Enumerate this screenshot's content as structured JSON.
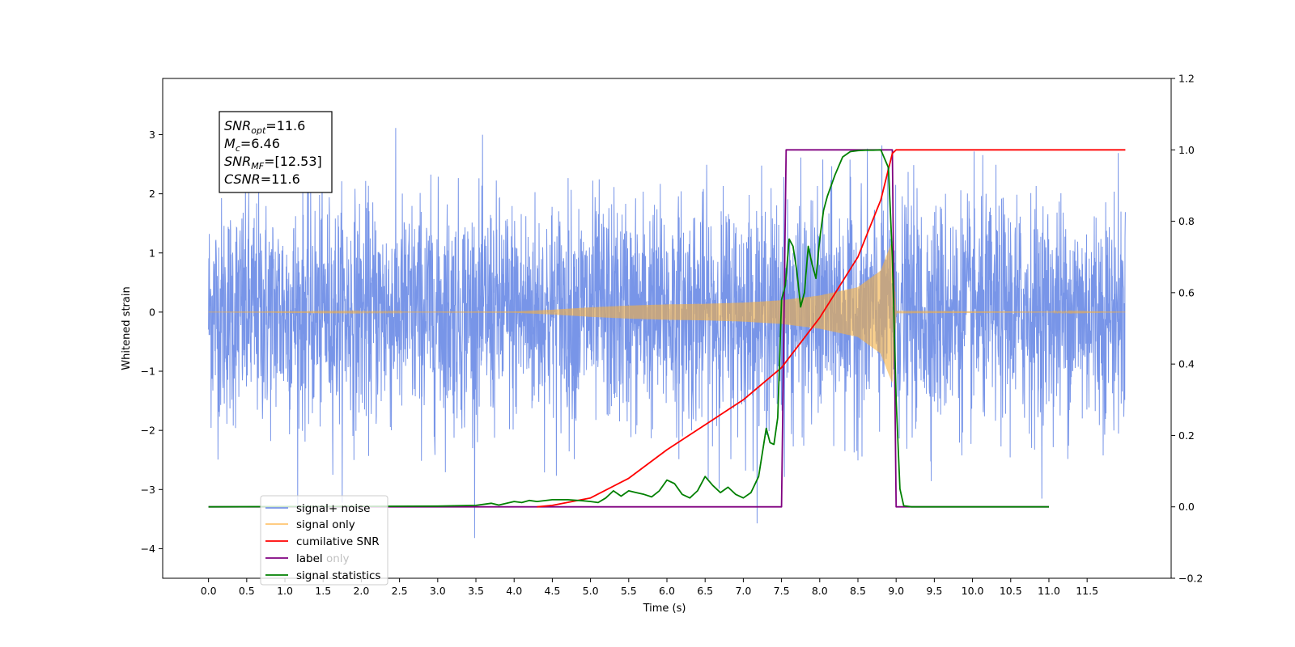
{
  "chart_data": {
    "type": "line",
    "title": "",
    "xlabel": "Time (s)",
    "ylabel": "Whitened strain",
    "y2label": "",
    "xlim": [
      -0.6,
      12.6
    ],
    "ylim": [
      -4.5,
      3.95
    ],
    "y2lim": [
      -0.2,
      1.2
    ],
    "x_ticks": [
      "0.0",
      "0.5",
      "1.0",
      "1.5",
      "2.0",
      "2.5",
      "3.0",
      "3.5",
      "4.0",
      "4.5",
      "5.0",
      "5.5",
      "6.0",
      "6.5",
      "7.0",
      "7.5",
      "8.0",
      "8.5",
      "9.0",
      "9.5",
      "10.0",
      "10.5",
      "11.0",
      "11.5"
    ],
    "y_ticks": [
      "3",
      "2",
      "1",
      "0",
      "−1",
      "−2",
      "−3",
      "−4"
    ],
    "y2_ticks": [
      "1.2",
      "1.0",
      "0.8",
      "0.6",
      "0.4",
      "0.2",
      "0.0",
      "−0.2"
    ],
    "grid": false,
    "legend_position": "lower-left",
    "annotation": {
      "lines": [
        {
          "sym": "SNR",
          "sub": "opt",
          "value": "=11.6"
        },
        {
          "sym": "M",
          "sub": "c",
          "value": "=6.46"
        },
        {
          "sym": "SNR",
          "sub": "MF",
          "value": "=[12.53]"
        },
        {
          "sym": "CSNR",
          "sub": "",
          "value": "=11.6"
        }
      ]
    },
    "series": [
      {
        "name": "signal+ noise",
        "axis": "left",
        "color": "#7895e8",
        "description_values": {
          "x_start": 0.0,
          "x_end": 12.0,
          "typical_amplitude": 1.3,
          "peak_max": 3.55,
          "peak_min": -4.1
        }
      },
      {
        "name": "signal only",
        "axis": "left",
        "color": "#f5b041",
        "x": [
          0,
          4.0,
          4.5,
          5.0,
          5.5,
          6.0,
          6.5,
          7.0,
          7.5,
          8.0,
          8.5,
          8.8,
          8.95,
          9.0,
          12.0
        ],
        "envelope": [
          0.0,
          0.01,
          0.04,
          0.08,
          0.11,
          0.13,
          0.14,
          0.16,
          0.2,
          0.28,
          0.42,
          0.7,
          1.2,
          0.02,
          0.0
        ]
      },
      {
        "name": "cumilative SNR",
        "axis": "right",
        "color": "#ff0000",
        "x": [
          4.3,
          4.5,
          5.0,
          5.5,
          6.0,
          6.5,
          7.0,
          7.5,
          8.0,
          8.5,
          8.8,
          8.95,
          9.0,
          12.0
        ],
        "y": [
          0.0,
          0.004,
          0.025,
          0.08,
          0.16,
          0.23,
          0.3,
          0.39,
          0.53,
          0.7,
          0.86,
          0.99,
          1.0,
          1.0
        ]
      },
      {
        "name": "label",
        "axis": "right",
        "color": "#800080",
        "x": [
          0.0,
          7.5,
          7.56,
          8.95,
          9.0,
          11.0
        ],
        "y": [
          0.0,
          0.0,
          1.0,
          1.0,
          0.0,
          0.0
        ]
      },
      {
        "name": "label only",
        "axis": "right",
        "color": "#cccccc",
        "x": [],
        "y": []
      },
      {
        "name": "signal statistics",
        "axis": "right",
        "color": "#008000",
        "x": [
          0.0,
          3.0,
          3.5,
          3.7,
          3.8,
          4.0,
          4.1,
          4.2,
          4.3,
          4.5,
          4.7,
          4.9,
          5.0,
          5.1,
          5.2,
          5.3,
          5.4,
          5.5,
          5.6,
          5.7,
          5.8,
          5.9,
          6.0,
          6.1,
          6.2,
          6.3,
          6.4,
          6.5,
          6.6,
          6.7,
          6.8,
          6.9,
          7.0,
          7.1,
          7.2,
          7.3,
          7.35,
          7.4,
          7.45,
          7.5,
          7.55,
          7.6,
          7.65,
          7.7,
          7.75,
          7.8,
          7.85,
          7.9,
          7.95,
          8.0,
          8.05,
          8.1,
          8.2,
          8.3,
          8.4,
          8.5,
          8.6,
          8.7,
          8.8,
          8.9,
          8.95,
          9.0,
          9.05,
          9.1,
          9.2,
          11.0
        ],
        "y": [
          0.0,
          0.002,
          0.004,
          0.01,
          0.005,
          0.015,
          0.012,
          0.018,
          0.015,
          0.02,
          0.02,
          0.017,
          0.015,
          0.012,
          0.025,
          0.045,
          0.03,
          0.045,
          0.04,
          0.035,
          0.028,
          0.045,
          0.075,
          0.065,
          0.035,
          0.025,
          0.045,
          0.085,
          0.06,
          0.04,
          0.055,
          0.035,
          0.025,
          0.04,
          0.085,
          0.22,
          0.18,
          0.175,
          0.25,
          0.58,
          0.62,
          0.75,
          0.73,
          0.66,
          0.56,
          0.6,
          0.73,
          0.68,
          0.64,
          0.75,
          0.83,
          0.87,
          0.93,
          0.98,
          0.995,
          0.998,
          0.999,
          0.999,
          1.0,
          0.95,
          0.7,
          0.3,
          0.05,
          0.003,
          0.0,
          0.0
        ]
      }
    ]
  },
  "legend": {
    "entries": [
      {
        "name": "signal+ noise",
        "color": "#7895e8",
        "alpha": 1.0
      },
      {
        "name": "signal only",
        "color": "#ffb74d",
        "alpha": 0.8
      },
      {
        "name": "cumilative SNR",
        "color": "#ff0000",
        "alpha": 1.0
      },
      {
        "name": "label",
        "color": "#800080",
        "alpha": 1.0
      },
      {
        "name": "label only",
        "color": "#cccccc",
        "alpha": 0.6
      },
      {
        "name": "signal statistics",
        "color": "#008000",
        "alpha": 1.0
      }
    ]
  }
}
